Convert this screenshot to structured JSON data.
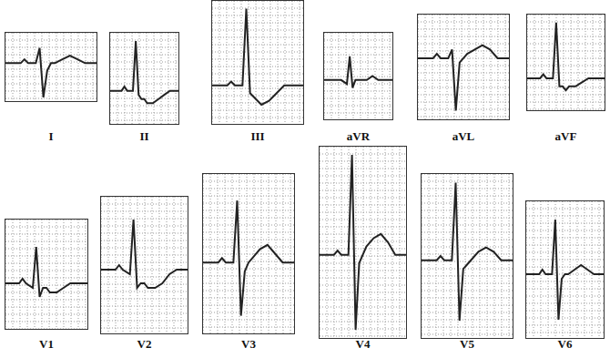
{
  "chart_data": [
    {
      "type": "line",
      "title": "I",
      "x": [
        0,
        4,
        5,
        6,
        8,
        9,
        10,
        11,
        12,
        13,
        15,
        17,
        19,
        21,
        24
      ],
      "values": [
        0,
        0,
        1,
        0,
        0,
        4,
        -9,
        -2,
        0,
        0,
        1,
        2,
        1,
        0,
        0
      ],
      "xlim": [
        0,
        24
      ],
      "ylim": [
        -10,
        8
      ],
      "grid": true,
      "tick_labels": false,
      "color": "#222222"
    },
    {
      "type": "line",
      "title": "II",
      "x": [
        0,
        4,
        5,
        6,
        8,
        9,
        10,
        11,
        12,
        13,
        15,
        17,
        19,
        21,
        24
      ],
      "values": [
        0,
        0,
        1,
        0,
        0,
        12,
        -1,
        -2,
        -2,
        -3,
        -3,
        -2,
        -1,
        0,
        0
      ],
      "xlim": [
        0,
        24
      ],
      "ylim": [
        -8,
        14
      ],
      "grid": true,
      "tick_labels": false,
      "color": "#222222"
    },
    {
      "type": "line",
      "title": "III",
      "x": [
        0,
        4,
        5,
        6,
        8,
        9,
        10,
        11,
        12,
        13,
        15,
        17,
        19,
        21,
        24
      ],
      "values": [
        0,
        0,
        1,
        0,
        0,
        20,
        -2,
        -3,
        -4,
        -5,
        -4,
        -2,
        0,
        0,
        0
      ],
      "xlim": [
        0,
        24
      ],
      "ylim": [
        -10,
        22
      ],
      "grid": true,
      "tick_labels": false,
      "color": "#222222"
    },
    {
      "type": "line",
      "title": "aVR",
      "x": [
        0,
        4,
        5,
        6,
        8,
        9,
        10,
        11,
        12,
        13,
        15,
        17,
        19,
        21,
        24
      ],
      "values": [
        0,
        0,
        0,
        0,
        -1,
        6,
        -2,
        0,
        0,
        0,
        0,
        1,
        0,
        0,
        0
      ],
      "xlim": [
        0,
        24
      ],
      "ylim": [
        -10,
        12
      ],
      "grid": true,
      "tick_labels": false,
      "color": "#222222"
    },
    {
      "type": "line",
      "title": "aVL",
      "x": [
        0,
        4,
        5,
        6,
        8,
        9,
        10,
        11,
        12,
        13,
        15,
        17,
        19,
        21,
        24
      ],
      "values": [
        0,
        0,
        1,
        0,
        0,
        2,
        -12,
        -1,
        0,
        1,
        2,
        3,
        2,
        0,
        0
      ],
      "xlim": [
        0,
        24
      ],
      "ylim": [
        -14,
        10
      ],
      "grid": true,
      "tick_labels": false,
      "color": "#222222"
    },
    {
      "type": "line",
      "title": "aVF",
      "x": [
        0,
        4,
        5,
        6,
        8,
        9,
        10,
        11,
        12,
        13,
        15,
        17,
        19,
        21,
        24
      ],
      "values": [
        0,
        0,
        1,
        0,
        0,
        14,
        -2,
        -2,
        -3,
        -2,
        -2,
        -1,
        0,
        0,
        0
      ],
      "xlim": [
        0,
        24
      ],
      "ylim": [
        -8,
        16
      ],
      "grid": true,
      "tick_labels": false,
      "color": "#222222"
    },
    {
      "type": "line",
      "title": "V1",
      "x": [
        0,
        4,
        5,
        6,
        8,
        9,
        10,
        11,
        12,
        13,
        15,
        17,
        19,
        21,
        24
      ],
      "values": [
        0,
        0,
        1,
        0,
        -1,
        8,
        -3,
        -1,
        -1,
        -2,
        -2,
        -1,
        0,
        0,
        0
      ],
      "xlim": [
        0,
        24
      ],
      "ylim": [
        -10,
        14
      ],
      "grid": true,
      "tick_labels": false,
      "color": "#222222"
    },
    {
      "type": "line",
      "title": "V2",
      "x": [
        0,
        4,
        5,
        6,
        8,
        9,
        10,
        11,
        12,
        13,
        15,
        17,
        19,
        21,
        24
      ],
      "values": [
        0,
        0,
        1,
        0,
        -1,
        11,
        -4,
        -3,
        -3,
        -4,
        -4,
        -3,
        -1,
        0,
        0
      ],
      "xlim": [
        0,
        24
      ],
      "ylim": [
        -14,
        16
      ],
      "grid": true,
      "tick_labels": false,
      "color": "#222222"
    },
    {
      "type": "line",
      "title": "V3",
      "x": [
        0,
        4,
        5,
        6,
        8,
        9,
        10,
        11,
        12,
        13,
        15,
        17,
        19,
        21,
        24
      ],
      "values": [
        0,
        0,
        1,
        0,
        0,
        14,
        -12,
        -2,
        0,
        1,
        3,
        4,
        2,
        0,
        0
      ],
      "xlim": [
        0,
        24
      ],
      "ylim": [
        -16,
        20
      ],
      "grid": true,
      "tick_labels": false,
      "color": "#222222"
    },
    {
      "type": "line",
      "title": "V4",
      "x": [
        0,
        4,
        5,
        6,
        8,
        9,
        10,
        11,
        12,
        13,
        15,
        17,
        19,
        21,
        24
      ],
      "values": [
        0,
        0,
        1,
        0,
        0,
        24,
        -18,
        -2,
        0,
        2,
        4,
        5,
        3,
        0,
        0
      ],
      "xlim": [
        0,
        24
      ],
      "ylim": [
        -20,
        26
      ],
      "grid": true,
      "tick_labels": false,
      "color": "#222222"
    },
    {
      "type": "line",
      "title": "V5",
      "x": [
        0,
        4,
        5,
        6,
        8,
        9,
        10,
        11,
        12,
        13,
        15,
        17,
        19,
        21,
        24
      ],
      "values": [
        0,
        0,
        1,
        0,
        0,
        18,
        -14,
        -2,
        -1,
        0,
        2,
        3,
        2,
        0,
        0
      ],
      "xlim": [
        0,
        24
      ],
      "ylim": [
        -18,
        20
      ],
      "grid": true,
      "tick_labels": false,
      "color": "#222222"
    },
    {
      "type": "line",
      "title": "V6",
      "x": [
        0,
        4,
        5,
        6,
        8,
        9,
        10,
        11,
        12,
        13,
        15,
        17,
        19,
        21,
        24
      ],
      "values": [
        0,
        0,
        1,
        0,
        0,
        12,
        -10,
        -1,
        0,
        0,
        1,
        2,
        1,
        0,
        0
      ],
      "xlim": [
        0,
        24
      ],
      "ylim": [
        -14,
        16
      ],
      "grid": true,
      "tick_labels": false,
      "color": "#222222"
    }
  ]
}
